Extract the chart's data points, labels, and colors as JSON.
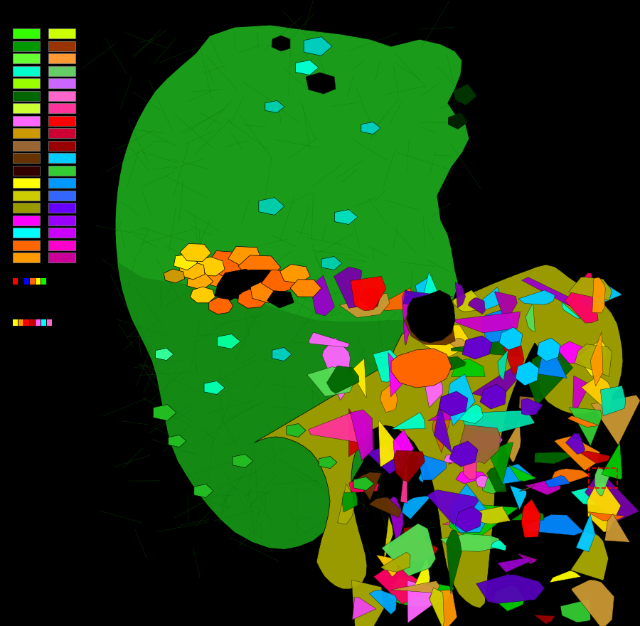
{
  "background_color": "#000000",
  "figsize": [
    9.0,
    8.8
  ],
  "dpi": 100,
  "legend_colors_col1": [
    "#33ff00",
    "#009900",
    "#66ff33",
    "#00ffcc",
    "#99ff00",
    "#006600",
    "#ccff33",
    "#ff66ff",
    "#cc9900",
    "#996633",
    "#663300",
    "#330000",
    "#ffff00",
    "#cccc00",
    "#999900",
    "#ff00ff",
    "#00ffff",
    "#ff6600",
    "#ff9900"
  ],
  "legend_colors_col2": [
    "#ccff00",
    "#993300",
    "#ff9933",
    "#66cc66",
    "#cc66ff",
    "#ff66cc",
    "#ff3399",
    "#ff0000",
    "#cc0033",
    "#990000",
    "#00ccff",
    "#33cc33",
    "#0099ff",
    "#3366ff",
    "#6600ff",
    "#9900ff",
    "#cc00ff",
    "#ff00cc",
    "#cc0099"
  ],
  "west_green": "#1a9c1a",
  "west_green2": "#0d7a0d",
  "road_color": "#0a6e0a",
  "teal_color": "#00ccaa",
  "east_base": "#b8b800",
  "orange_color": "#ff6600",
  "black_color": "#000000"
}
